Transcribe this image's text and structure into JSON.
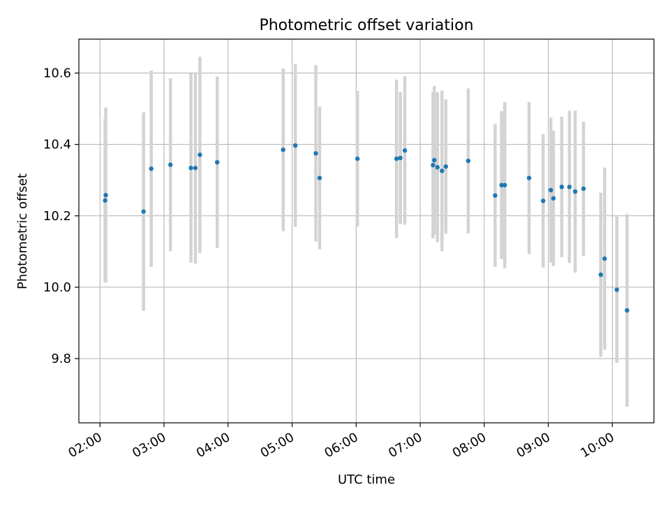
{
  "chart_data": {
    "type": "scatter",
    "title": "Photometric offset variation",
    "xlabel": "UTC time",
    "ylabel": "Photometric offset",
    "grid": true,
    "legend": "none",
    "xlim": [
      1.67,
      10.65
    ],
    "ylim": [
      9.62,
      10.695
    ],
    "x_ticks": [
      {
        "value": 2,
        "label": "02:00"
      },
      {
        "value": 3,
        "label": "03:00"
      },
      {
        "value": 4,
        "label": "04:00"
      },
      {
        "value": 5,
        "label": "05:00"
      },
      {
        "value": 6,
        "label": "06:00"
      },
      {
        "value": 7,
        "label": "07:00"
      },
      {
        "value": 8,
        "label": "08:00"
      },
      {
        "value": 9,
        "label": "09:00"
      },
      {
        "value": 10,
        "label": "10:00"
      }
    ],
    "y_ticks": [
      {
        "value": 9.8,
        "label": "9.8"
      },
      {
        "value": 10.0,
        "label": "10.0"
      },
      {
        "value": 10.2,
        "label": "10.2"
      },
      {
        "value": 10.4,
        "label": "10.4"
      },
      {
        "value": 10.6,
        "label": "10.6"
      }
    ],
    "series": [
      {
        "name": "offset",
        "marker_color": "#1f77b4",
        "errorbar_color": "#d3d3d3",
        "points": [
          {
            "x": 2.08,
            "y": 10.243,
            "err": 0.23
          },
          {
            "x": 2.09,
            "y": 10.258,
            "err": 0.245
          },
          {
            "x": 2.68,
            "y": 10.212,
            "err": 0.278
          },
          {
            "x": 2.8,
            "y": 10.332,
            "err": 0.275
          },
          {
            "x": 3.1,
            "y": 10.343,
            "err": 0.242
          },
          {
            "x": 3.42,
            "y": 10.334,
            "err": 0.265
          },
          {
            "x": 3.49,
            "y": 10.334,
            "err": 0.268
          },
          {
            "x": 3.56,
            "y": 10.371,
            "err": 0.275
          },
          {
            "x": 3.83,
            "y": 10.35,
            "err": 0.24
          },
          {
            "x": 4.86,
            "y": 10.385,
            "err": 0.228
          },
          {
            "x": 5.05,
            "y": 10.397,
            "err": 0.228
          },
          {
            "x": 5.37,
            "y": 10.375,
            "err": 0.247
          },
          {
            "x": 5.43,
            "y": 10.306,
            "err": 0.2
          },
          {
            "x": 6.02,
            "y": 10.36,
            "err": 0.19
          },
          {
            "x": 6.63,
            "y": 10.36,
            "err": 0.222
          },
          {
            "x": 6.69,
            "y": 10.362,
            "err": 0.185
          },
          {
            "x": 6.76,
            "y": 10.383,
            "err": 0.208
          },
          {
            "x": 7.2,
            "y": 10.342,
            "err": 0.205
          },
          {
            "x": 7.22,
            "y": 10.356,
            "err": 0.208
          },
          {
            "x": 7.27,
            "y": 10.336,
            "err": 0.21
          },
          {
            "x": 7.34,
            "y": 10.326,
            "err": 0.225
          },
          {
            "x": 7.4,
            "y": 10.338,
            "err": 0.188
          },
          {
            "x": 7.75,
            "y": 10.354,
            "err": 0.203
          },
          {
            "x": 8.17,
            "y": 10.257,
            "err": 0.2
          },
          {
            "x": 8.27,
            "y": 10.286,
            "err": 0.207
          },
          {
            "x": 8.32,
            "y": 10.286,
            "err": 0.233
          },
          {
            "x": 8.7,
            "y": 10.306,
            "err": 0.213
          },
          {
            "x": 8.92,
            "y": 10.242,
            "err": 0.187
          },
          {
            "x": 9.04,
            "y": 10.272,
            "err": 0.203
          },
          {
            "x": 9.08,
            "y": 10.249,
            "err": 0.19
          },
          {
            "x": 9.21,
            "y": 10.281,
            "err": 0.197
          },
          {
            "x": 9.33,
            "y": 10.281,
            "err": 0.213
          },
          {
            "x": 9.42,
            "y": 10.268,
            "err": 0.227
          },
          {
            "x": 9.55,
            "y": 10.276,
            "err": 0.188
          },
          {
            "x": 9.82,
            "y": 10.035,
            "err": 0.23
          },
          {
            "x": 9.88,
            "y": 10.08,
            "err": 0.255
          },
          {
            "x": 10.07,
            "y": 9.993,
            "err": 0.205
          },
          {
            "x": 10.23,
            "y": 9.935,
            "err": 0.27
          }
        ]
      }
    ]
  }
}
